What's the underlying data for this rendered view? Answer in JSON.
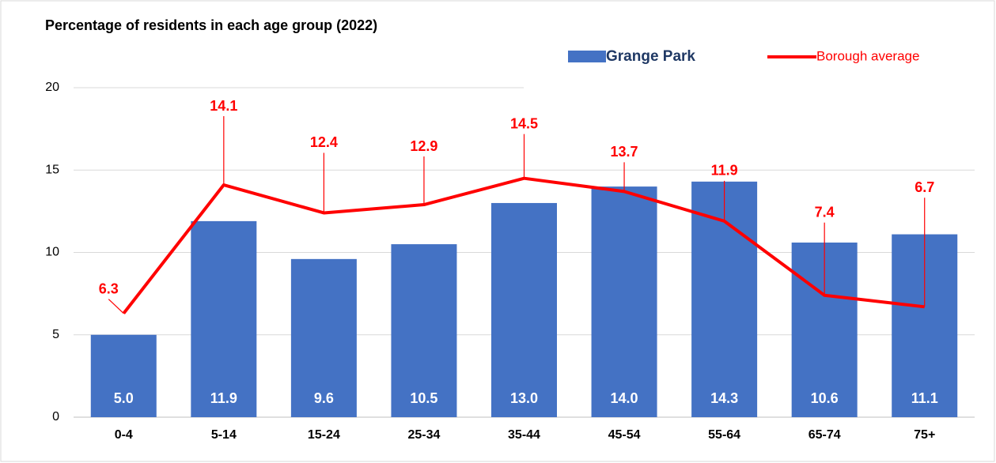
{
  "chart_data": {
    "type": "combo",
    "title": "Percentage of residents in each age group (2022)",
    "categories": [
      "0-4",
      "5-14",
      "15-24",
      "25-34",
      "35-44",
      "45-54",
      "55-64",
      "65-74",
      "75+"
    ],
    "series": [
      {
        "name": "Grange Park",
        "type": "bar",
        "color": "#4472c4",
        "values": [
          5.0,
          11.9,
          9.6,
          10.5,
          13.0,
          14.0,
          14.3,
          10.6,
          11.1
        ],
        "value_labels": [
          "5.0",
          "11.9",
          "9.6",
          "10.5",
          "13.0",
          "14.0",
          "14.3",
          "10.6",
          "11.1"
        ]
      },
      {
        "name": "Borough average",
        "type": "line",
        "color": "#ff0000",
        "values": [
          6.3,
          14.1,
          12.4,
          12.9,
          14.5,
          13.7,
          11.9,
          7.4,
          6.7
        ]
      }
    ],
    "ylim": [
      0,
      20
    ],
    "yticks": [
      0,
      5,
      10,
      15,
      20
    ],
    "grid": true,
    "legend": "top-right"
  }
}
